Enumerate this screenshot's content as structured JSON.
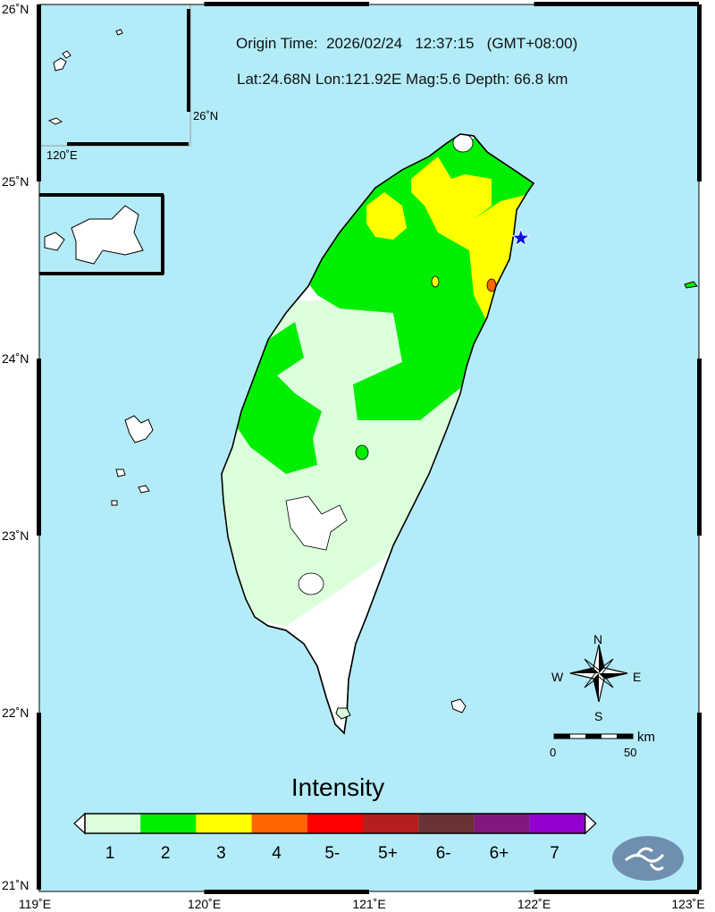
{
  "header": {
    "origin_line": "Origin Time:  2026/02/24   12:37:15   (GMT+08:00)",
    "params_line": "Lat:24.68N  Lon:121.92E  Mag:5.6  Depth: 66.8 km"
  },
  "axes": {
    "lon_labels": [
      "119˚E",
      "120˚E",
      "121˚E",
      "122˚E",
      "123˚E"
    ],
    "lat_labels": [
      "26˚N",
      "25˚N",
      "24˚N",
      "23˚N",
      "22˚N",
      "21˚N"
    ]
  },
  "inset": {
    "lat_label": "26˚N",
    "lon_label": "120˚E"
  },
  "epicenter": {
    "lat": 24.68,
    "lon": 121.92,
    "color": "#1010e0"
  },
  "legend": {
    "title": "Intensity",
    "levels": [
      {
        "label": "1",
        "color": "#dcffdc"
      },
      {
        "label": "2",
        "color": "#00ee00"
      },
      {
        "label": "3",
        "color": "#ffff00"
      },
      {
        "label": "4",
        "color": "#ff6600"
      },
      {
        "label": "5-",
        "color": "#ff0000"
      },
      {
        "label": "5+",
        "color": "#b41e1e"
      },
      {
        "label": "6-",
        "color": "#6a3232"
      },
      {
        "label": "6+",
        "color": "#801880"
      },
      {
        "label": "7",
        "color": "#9400d0"
      }
    ]
  },
  "compass": {
    "n": "N",
    "s": "S",
    "e": "E",
    "w": "W"
  },
  "scale": {
    "unit": "km",
    "start": "0",
    "end": "50"
  },
  "colors": {
    "sea": "#b3ecf8",
    "land_none": "#ffffff",
    "logo": "#6f8fb0"
  }
}
